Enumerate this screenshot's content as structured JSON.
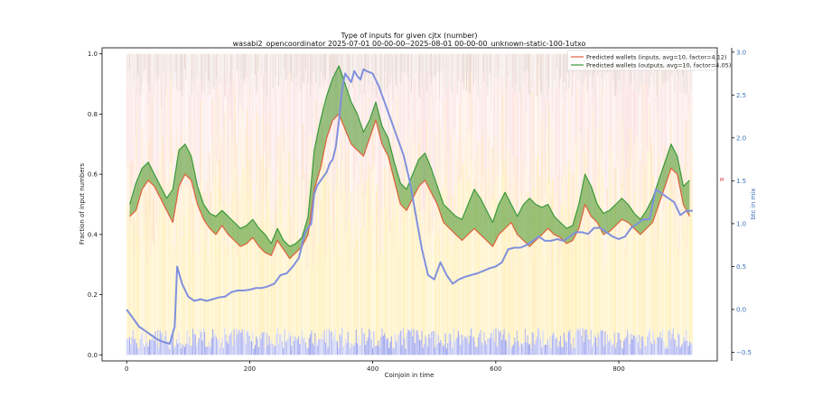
{
  "chart_data": {
    "type": "line",
    "title": "Type of inputs for given cjtx (number)",
    "subtitle": "wasabi2_opencoordinator 2025-07-01 00-00-00--2025-08-01 00-00-00_unknown-static-100-1utxo",
    "xlabel": "Coinjoin in time",
    "ylabel": "Fraction of input numbers",
    "y2label": "btc in mix",
    "xlim": [
      -40,
      960
    ],
    "ylim": [
      -0.02,
      1.02
    ],
    "y2lim": [
      -0.6,
      3.05
    ],
    "xticks": [
      "0",
      "200",
      "400",
      "600",
      "800"
    ],
    "xtick_values": [
      0,
      200,
      400,
      600,
      800
    ],
    "yticks": [
      "0.0",
      "0.2",
      "0.4",
      "0.6",
      "0.8",
      "1.0"
    ],
    "ytick_values": [
      0.0,
      0.2,
      0.4,
      0.6,
      0.8,
      1.0
    ],
    "y2ticks": [
      "−0.5",
      "0.0",
      "0.5",
      "1.0",
      "1.5",
      "2.0",
      "2.5",
      "3.0"
    ],
    "y2tick_values": [
      -0.5,
      0.0,
      0.5,
      1.0,
      1.5,
      2.0,
      2.5,
      3.0
    ],
    "right_axis_marker": "M",
    "legend_position": "top-right",
    "series": [
      {
        "name": "Predicted wallets (inputs, avg=10, factor=4.12)",
        "color": "#e0603a",
        "x": [
          5,
          15,
          25,
          35,
          45,
          55,
          65,
          75,
          85,
          95,
          105,
          115,
          125,
          135,
          145,
          155,
          165,
          175,
          185,
          195,
          205,
          215,
          225,
          235,
          245,
          255,
          265,
          275,
          285,
          295,
          305,
          315,
          325,
          335,
          345,
          355,
          365,
          375,
          385,
          395,
          405,
          415,
          425,
          435,
          445,
          455,
          465,
          475,
          485,
          495,
          505,
          515,
          525,
          535,
          545,
          555,
          565,
          575,
          585,
          595,
          605,
          615,
          625,
          635,
          645,
          655,
          665,
          675,
          685,
          695,
          705,
          715,
          725,
          735,
          745,
          755,
          765,
          775,
          785,
          795,
          805,
          815,
          825,
          835,
          845,
          855,
          865,
          875,
          885,
          895,
          905,
          915
        ],
        "y": [
          0.46,
          0.48,
          0.55,
          0.58,
          0.56,
          0.52,
          0.48,
          0.44,
          0.56,
          0.6,
          0.58,
          0.5,
          0.45,
          0.42,
          0.4,
          0.43,
          0.4,
          0.38,
          0.36,
          0.37,
          0.39,
          0.36,
          0.34,
          0.33,
          0.38,
          0.35,
          0.32,
          0.34,
          0.36,
          0.4,
          0.55,
          0.62,
          0.72,
          0.78,
          0.8,
          0.75,
          0.7,
          0.68,
          0.66,
          0.72,
          0.78,
          0.7,
          0.66,
          0.58,
          0.5,
          0.48,
          0.52,
          0.56,
          0.58,
          0.54,
          0.5,
          0.44,
          0.42,
          0.4,
          0.38,
          0.4,
          0.42,
          0.4,
          0.38,
          0.36,
          0.4,
          0.42,
          0.44,
          0.4,
          0.38,
          0.36,
          0.38,
          0.4,
          0.42,
          0.4,
          0.39,
          0.37,
          0.38,
          0.42,
          0.5,
          0.46,
          0.44,
          0.4,
          0.41,
          0.43,
          0.45,
          0.44,
          0.42,
          0.4,
          0.42,
          0.44,
          0.5,
          0.56,
          0.62,
          0.6,
          0.5,
          0.46
        ]
      },
      {
        "name": "Predicted wallets (outputs, avg=10, factor=4.05)",
        "color": "#3a9a3a",
        "x": [
          5,
          15,
          25,
          35,
          45,
          55,
          65,
          75,
          85,
          95,
          105,
          115,
          125,
          135,
          145,
          155,
          165,
          175,
          185,
          195,
          205,
          215,
          225,
          235,
          245,
          255,
          265,
          275,
          285,
          295,
          305,
          315,
          325,
          335,
          345,
          355,
          365,
          375,
          385,
          395,
          405,
          415,
          425,
          435,
          445,
          455,
          465,
          475,
          485,
          495,
          505,
          515,
          525,
          535,
          545,
          555,
          565,
          575,
          585,
          595,
          605,
          615,
          625,
          635,
          645,
          655,
          665,
          675,
          685,
          695,
          705,
          715,
          725,
          735,
          745,
          755,
          765,
          775,
          785,
          795,
          805,
          815,
          825,
          835,
          845,
          855,
          865,
          875,
          885,
          895,
          905,
          915
        ],
        "y": [
          0.5,
          0.57,
          0.62,
          0.64,
          0.6,
          0.56,
          0.52,
          0.55,
          0.68,
          0.7,
          0.66,
          0.56,
          0.5,
          0.47,
          0.46,
          0.48,
          0.46,
          0.44,
          0.42,
          0.43,
          0.45,
          0.42,
          0.4,
          0.37,
          0.42,
          0.38,
          0.36,
          0.37,
          0.39,
          0.46,
          0.68,
          0.78,
          0.86,
          0.92,
          0.96,
          0.9,
          0.84,
          0.8,
          0.74,
          0.78,
          0.84,
          0.76,
          0.72,
          0.64,
          0.57,
          0.55,
          0.6,
          0.65,
          0.67,
          0.62,
          0.56,
          0.5,
          0.48,
          0.46,
          0.45,
          0.5,
          0.55,
          0.52,
          0.48,
          0.44,
          0.5,
          0.54,
          0.5,
          0.46,
          0.5,
          0.52,
          0.5,
          0.49,
          0.5,
          0.46,
          0.44,
          0.42,
          0.43,
          0.5,
          0.6,
          0.56,
          0.5,
          0.47,
          0.48,
          0.5,
          0.52,
          0.5,
          0.47,
          0.45,
          0.48,
          0.52,
          0.58,
          0.64,
          0.7,
          0.66,
          0.56,
          0.58
        ]
      },
      {
        "name": "",
        "axis": "right",
        "color": "#8090dd",
        "x": [
          0,
          10,
          20,
          30,
          40,
          50,
          60,
          70,
          78,
          82,
          90,
          100,
          110,
          120,
          130,
          140,
          150,
          160,
          170,
          180,
          190,
          200,
          210,
          220,
          230,
          240,
          250,
          260,
          270,
          280,
          290,
          300,
          305,
          310,
          315,
          320,
          325,
          330,
          335,
          340,
          345,
          350,
          355,
          360,
          365,
          370,
          375,
          380,
          385,
          390,
          400,
          410,
          420,
          430,
          440,
          450,
          460,
          470,
          480,
          490,
          500,
          510,
          520,
          530,
          540,
          550,
          560,
          570,
          580,
          590,
          600,
          610,
          620,
          630,
          640,
          650,
          660,
          670,
          680,
          690,
          700,
          710,
          720,
          730,
          740,
          750,
          760,
          770,
          780,
          790,
          800,
          810,
          820,
          830,
          840,
          850,
          860,
          870,
          880,
          890,
          900,
          910,
          920
        ],
        "y": [
          0.0,
          -0.1,
          -0.2,
          -0.25,
          -0.3,
          -0.35,
          -0.38,
          -0.4,
          -0.2,
          0.5,
          0.3,
          0.15,
          0.1,
          0.12,
          0.1,
          0.12,
          0.14,
          0.15,
          0.2,
          0.22,
          0.22,
          0.23,
          0.25,
          0.25,
          0.27,
          0.3,
          0.4,
          0.42,
          0.5,
          0.6,
          0.9,
          1.0,
          1.35,
          1.45,
          1.5,
          1.55,
          1.6,
          1.7,
          1.75,
          1.9,
          2.2,
          2.55,
          2.75,
          2.7,
          2.65,
          2.78,
          2.72,
          2.68,
          2.8,
          2.78,
          2.75,
          2.6,
          2.4,
          2.2,
          2.0,
          1.8,
          1.5,
          1.1,
          0.7,
          0.4,
          0.35,
          0.55,
          0.4,
          0.3,
          0.35,
          0.38,
          0.4,
          0.42,
          0.45,
          0.48,
          0.5,
          0.55,
          0.7,
          0.72,
          0.72,
          0.75,
          0.8,
          0.85,
          0.8,
          0.8,
          0.82,
          0.8,
          0.85,
          0.9,
          0.9,
          0.88,
          0.95,
          0.95,
          0.9,
          0.85,
          0.82,
          0.85,
          0.95,
          1.0,
          1.05,
          1.05,
          1.4,
          1.35,
          1.3,
          1.25,
          1.1,
          1.15,
          1.15
        ]
      }
    ]
  }
}
